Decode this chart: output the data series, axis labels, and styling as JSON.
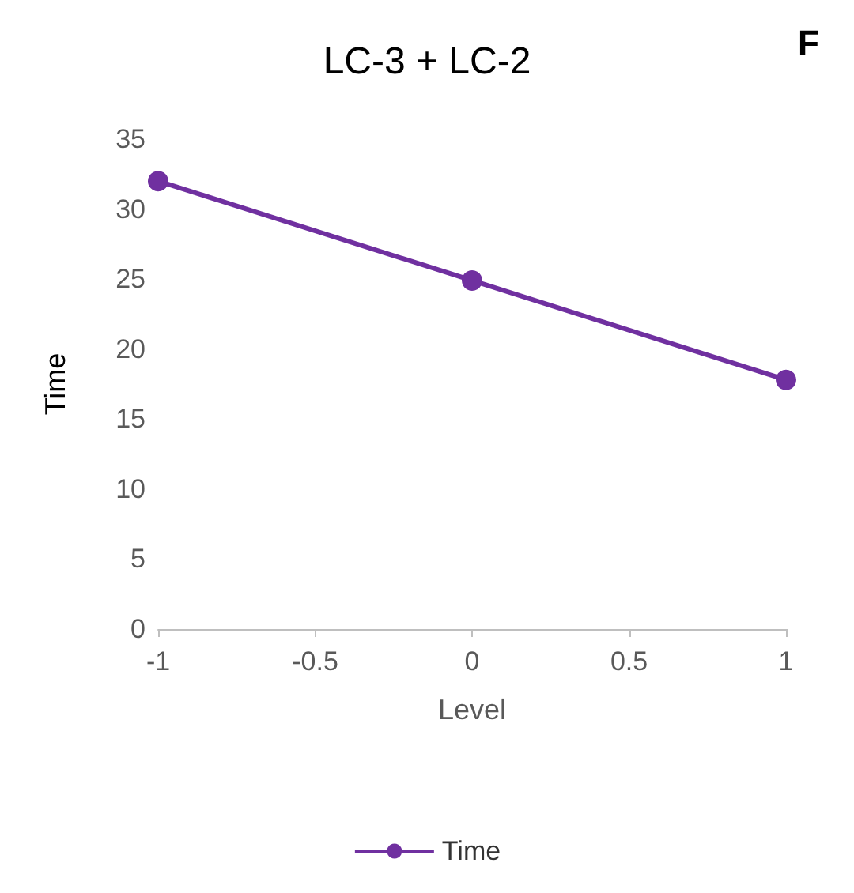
{
  "chart_data": {
    "type": "line",
    "title": "LC-3 + LC-2",
    "xlabel": "Level",
    "ylabel": "Time",
    "annotations": [
      "F"
    ],
    "x": [
      -1,
      0,
      1
    ],
    "series": [
      {
        "name": "Time",
        "color": "#7030a0",
        "values": [
          32,
          24.9,
          17.8
        ]
      }
    ],
    "xlim": [
      -1,
      1
    ],
    "xticks": [
      -1,
      -0.5,
      0,
      0.5,
      1
    ],
    "ylim": [
      0,
      35
    ],
    "yticks": [
      0,
      5,
      10,
      15,
      20,
      25,
      30,
      35
    ],
    "grid": false,
    "legend": "bottom",
    "marker": "circle",
    "line_style": "solid"
  }
}
